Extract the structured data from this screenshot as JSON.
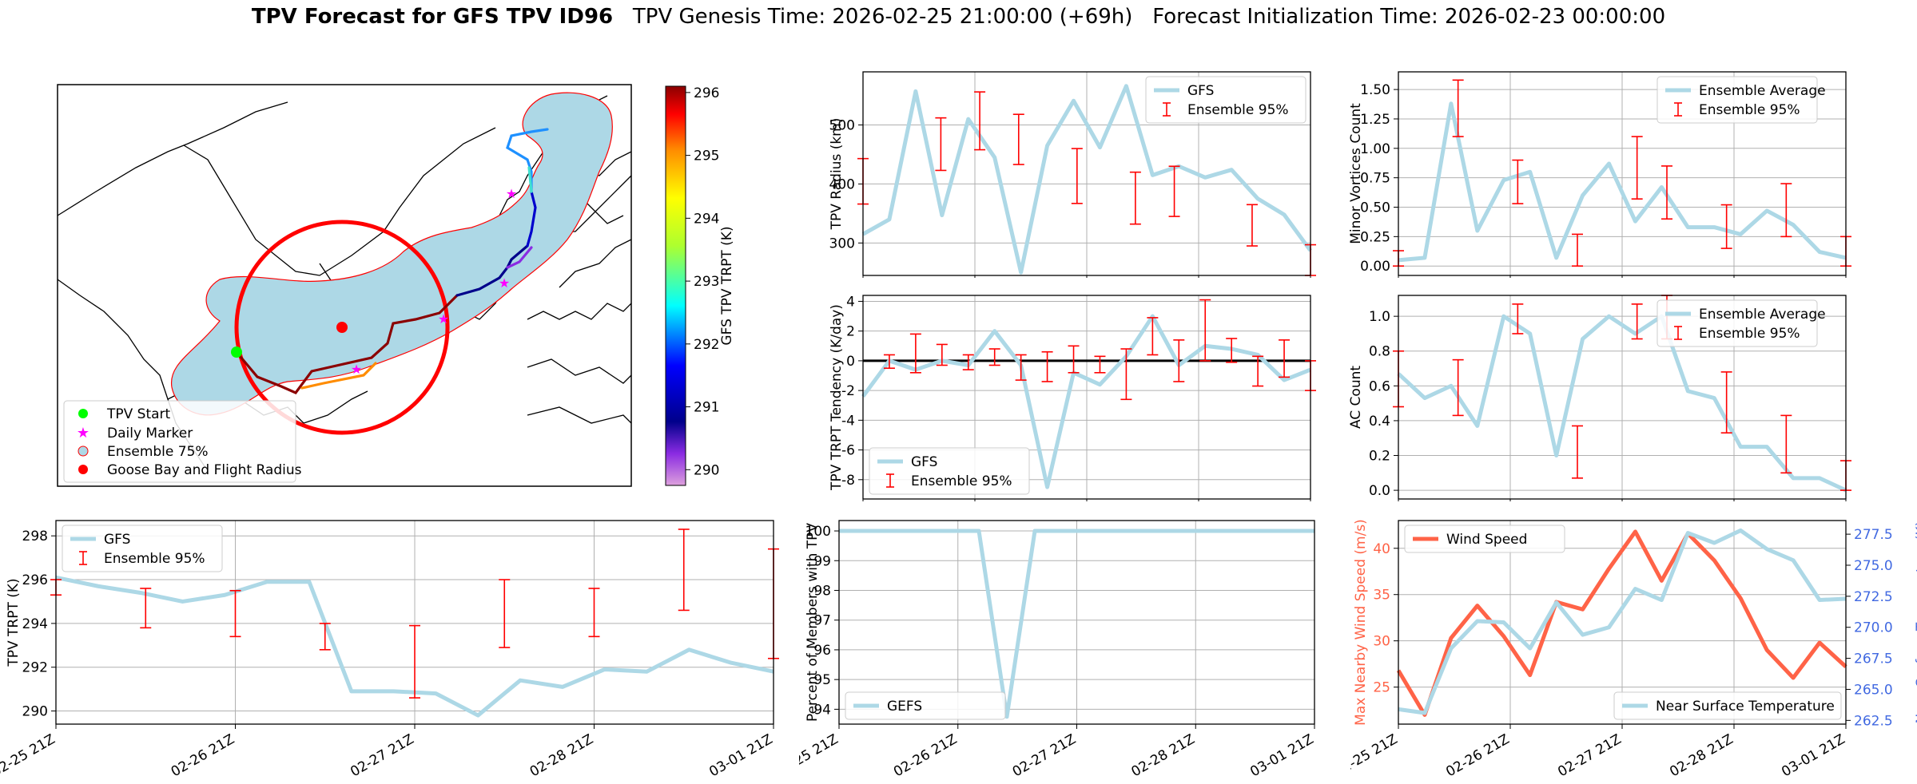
{
  "title": {
    "bold": "TPV Forecast for GFS TPV ID96",
    "genesis": "TPV Genesis Time: 2026-02-25 21:00:00 (+69h)",
    "init": "Forecast Initialization Time: 2026-02-23 00:00:00"
  },
  "colors": {
    "gfs": "#add8e6",
    "ens": "#ff0000",
    "wind": "#ff6347",
    "temp": "#4169e1",
    "ensemble_fill": "#add8e6",
    "ensemble_edge": "#ff0000",
    "flight_circle": "#ff0000"
  },
  "map": {
    "colorbar_label": "GFS TPV TRPT (K)",
    "colorbar_ticks": [
      "290",
      "291",
      "292",
      "293",
      "294",
      "295",
      "296"
    ],
    "legend": [
      "TPV Start",
      "Daily Marker",
      "Ensemble 75%",
      "Goose Bay and Flight Radius"
    ]
  },
  "chart_data": [
    {
      "id": "radius",
      "type": "line",
      "ylabel": "TPV Radius (km)",
      "ylim": [
        245,
        590
      ],
      "yticks": [
        300,
        400,
        500
      ],
      "xlim": [
        0,
        24
      ],
      "legend_pos": "top-right",
      "legend": [
        "GFS",
        "Ensemble 95%"
      ],
      "show_xlabels": false,
      "series": [
        {
          "name": "GFS",
          "values": [
            315,
            340,
            557,
            347,
            510,
            445,
            250,
            465,
            541,
            462,
            566,
            415,
            430,
            411,
            424,
            375,
            348,
            287
          ]
        }
      ],
      "errorbars": [
        {
          "x": 0,
          "lo": 366,
          "hi": 443
        },
        {
          "x": 4,
          "lo": 423,
          "hi": 512
        },
        {
          "x": 6,
          "lo": 458,
          "hi": 556
        },
        {
          "x": 8,
          "lo": 433,
          "hi": 518
        },
        {
          "x": 11,
          "lo": 367,
          "hi": 460
        },
        {
          "x": 14,
          "lo": 332,
          "hi": 420
        },
        {
          "x": 16,
          "lo": 345,
          "hi": 430
        },
        {
          "x": 20,
          "lo": 295,
          "hi": 365
        },
        {
          "x": 23,
          "lo": 240,
          "hi": 297
        }
      ]
    },
    {
      "id": "minor",
      "type": "line",
      "ylabel": "Minor Vortices Count",
      "ylim": [
        -0.08,
        1.65
      ],
      "yticks": [
        0.0,
        0.25,
        0.5,
        0.75,
        1.0,
        1.25,
        1.5
      ],
      "xlim": [
        0,
        24
      ],
      "legend_pos": "top-right",
      "legend": [
        "Ensemble Average",
        "Ensemble 95%"
      ],
      "show_xlabels": false,
      "series": [
        {
          "name": "Ensemble Average",
          "values": [
            0.05,
            0.07,
            1.38,
            0.3,
            0.73,
            0.8,
            0.07,
            0.6,
            0.87,
            0.38,
            0.67,
            0.33,
            0.33,
            0.27,
            0.47,
            0.35,
            0.12,
            0.07
          ]
        }
      ],
      "errorbars": [
        {
          "x": 0,
          "lo": 0.0,
          "hi": 0.13
        },
        {
          "x": 4,
          "lo": 1.1,
          "hi": 1.58
        },
        {
          "x": 8,
          "lo": 0.53,
          "hi": 0.9
        },
        {
          "x": 12,
          "lo": 0.0,
          "hi": 0.27
        },
        {
          "x": 16,
          "lo": 0.57,
          "hi": 1.1
        },
        {
          "x": 18,
          "lo": 0.4,
          "hi": 0.85
        },
        {
          "x": 22,
          "lo": 0.15,
          "hi": 0.52
        },
        {
          "x": 26,
          "lo": 0.25,
          "hi": 0.7
        },
        {
          "x": 30,
          "lo": 0.0,
          "hi": 0.25
        }
      ]
    },
    {
      "id": "tendency",
      "type": "line",
      "ylabel": "TPV TRPT Tendency (K/day)",
      "ylim": [
        -9.3,
        4.4
      ],
      "yticks": [
        -8,
        -6,
        -4,
        -2,
        0,
        2,
        4
      ],
      "xlim": [
        0,
        24
      ],
      "legend_pos": "bottom-left",
      "legend": [
        "GFS",
        "Ensemble 95%"
      ],
      "show_xlabels": false,
      "zero_line": true,
      "series": [
        {
          "name": "GFS",
          "values": [
            -2.4,
            0.0,
            -0.6,
            0.0,
            -0.3,
            2.0,
            -0.3,
            -8.5,
            -0.8,
            -1.6,
            0.3,
            3.0,
            -0.3,
            1.0,
            0.8,
            0.4,
            -1.3,
            -0.6
          ]
        }
      ],
      "errorbars": [
        {
          "x": 1,
          "lo": -0.5,
          "hi": 0.4
        },
        {
          "x": 2,
          "lo": -0.8,
          "hi": 1.8
        },
        {
          "x": 3,
          "lo": -0.3,
          "hi": 1.1
        },
        {
          "x": 4,
          "lo": -0.6,
          "hi": 0.4
        },
        {
          "x": 5,
          "lo": -0.3,
          "hi": 0.8
        },
        {
          "x": 6,
          "lo": -1.3,
          "hi": 0.4
        },
        {
          "x": 7,
          "lo": -1.4,
          "hi": 0.6
        },
        {
          "x": 8,
          "lo": -0.8,
          "hi": 1.0
        },
        {
          "x": 9,
          "lo": -0.8,
          "hi": 0.3
        },
        {
          "x": 10,
          "lo": -2.6,
          "hi": 0.8
        },
        {
          "x": 11,
          "lo": 0.4,
          "hi": 2.9
        },
        {
          "x": 12,
          "lo": -1.4,
          "hi": 1.4
        },
        {
          "x": 13,
          "lo": 0.0,
          "hi": 4.1
        },
        {
          "x": 14,
          "lo": -0.1,
          "hi": 1.5
        },
        {
          "x": 15,
          "lo": -1.7,
          "hi": 0.3
        },
        {
          "x": 16,
          "lo": -1.1,
          "hi": 1.4
        },
        {
          "x": 17,
          "lo": -2.0,
          "hi": 0.0
        }
      ]
    },
    {
      "id": "ac",
      "type": "line",
      "ylabel": "AC Count",
      "ylim": [
        -0.05,
        1.12
      ],
      "yticks": [
        0.0,
        0.2,
        0.4,
        0.6,
        0.8,
        1.0
      ],
      "xlim": [
        0,
        24
      ],
      "legend_pos": "top-right",
      "legend": [
        "Ensemble Average",
        "Ensemble 95%"
      ],
      "show_xlabels": false,
      "series": [
        {
          "name": "Ensemble Average",
          "values": [
            0.67,
            0.53,
            0.6,
            0.37,
            1.0,
            0.9,
            0.2,
            0.87,
            1.0,
            0.9,
            1.0,
            0.57,
            0.53,
            0.25,
            0.25,
            0.07,
            0.07,
            0.0
          ]
        }
      ],
      "errorbars": [
        {
          "x": 0,
          "lo": 0.48,
          "hi": 0.8
        },
        {
          "x": 4,
          "lo": 0.43,
          "hi": 0.75
        },
        {
          "x": 8,
          "lo": 0.9,
          "hi": 1.07
        },
        {
          "x": 12,
          "lo": 0.07,
          "hi": 0.37
        },
        {
          "x": 16,
          "lo": 0.87,
          "hi": 1.07
        },
        {
          "x": 18,
          "lo": 0.87,
          "hi": 1.12
        },
        {
          "x": 22,
          "lo": 0.33,
          "hi": 0.68
        },
        {
          "x": 26,
          "lo": 0.1,
          "hi": 0.43
        },
        {
          "x": 30,
          "lo": 0.0,
          "hi": 0.17
        }
      ]
    },
    {
      "id": "trpt",
      "type": "line",
      "ylabel": "TPV TRPT (K)",
      "ylim": [
        289.4,
        298.7
      ],
      "yticks": [
        290,
        292,
        294,
        296,
        298
      ],
      "xlim": [
        0,
        24
      ],
      "legend_pos": "top-left",
      "legend": [
        "GFS",
        "Ensemble 95%"
      ],
      "show_xlabels": true,
      "xticks": [
        {
          "x": 0,
          "label": "02-25 21Z"
        },
        {
          "x": 6,
          "label": "02-26 21Z"
        },
        {
          "x": 12,
          "label": "02-27 21Z"
        },
        {
          "x": 18,
          "label": "02-28 21Z"
        },
        {
          "x": 24,
          "label": "03-01 21Z"
        }
      ],
      "series": [
        {
          "name": "GFS",
          "values": [
            296.1,
            295.7,
            295.4,
            295.0,
            295.3,
            295.9,
            295.9,
            290.9,
            290.9,
            290.8,
            289.8,
            291.4,
            291.1,
            291.9,
            291.8,
            292.8,
            292.2,
            291.8
          ]
        }
      ],
      "errorbars": [
        {
          "x": 0,
          "lo": 295.3,
          "hi": 296.0
        },
        {
          "x": 3,
          "lo": 293.8,
          "hi": 295.6
        },
        {
          "x": 6,
          "lo": 293.4,
          "hi": 295.5
        },
        {
          "x": 9,
          "lo": 292.8,
          "hi": 294.0
        },
        {
          "x": 12,
          "lo": 290.6,
          "hi": 293.9
        },
        {
          "x": 15,
          "lo": 292.9,
          "hi": 296.0
        },
        {
          "x": 18,
          "lo": 293.4,
          "hi": 295.6
        },
        {
          "x": 21,
          "lo": 294.6,
          "hi": 298.3
        },
        {
          "x": 24,
          "lo": 292.4,
          "hi": 297.4
        }
      ]
    },
    {
      "id": "percent",
      "type": "line",
      "ylabel": "Percent of Members with TPV",
      "ylim": [
        93.5,
        100.35
      ],
      "yticks": [
        94,
        95,
        96,
        97,
        98,
        99,
        100
      ],
      "xlim": [
        0,
        24
      ],
      "legend_pos": "bottom-left",
      "legend": [
        "GEFS"
      ],
      "show_xlabels": true,
      "xticks": [
        {
          "x": 0,
          "label": "02-25 21Z"
        },
        {
          "x": 6,
          "label": "02-26 21Z"
        },
        {
          "x": 12,
          "label": "02-27 21Z"
        },
        {
          "x": 18,
          "label": "02-28 21Z"
        },
        {
          "x": 24,
          "label": "03-01 21Z"
        }
      ],
      "series": [
        {
          "name": "GEFS",
          "values": [
            100,
            100,
            100,
            100,
            100,
            100,
            93.75,
            100,
            100,
            100,
            100,
            100,
            100,
            100,
            100,
            100,
            100,
            100
          ]
        }
      ],
      "errorbars": []
    },
    {
      "id": "wind",
      "type": "line",
      "ylabel": "Max Nearby Wind Speed (m/s)",
      "y2label": "Near Surface Temperature (K)",
      "ylim": [
        21,
        43
      ],
      "y2lim": [
        262.2,
        278.6
      ],
      "yticks": [
        25,
        30,
        35,
        40
      ],
      "y2ticks": [
        262.5,
        265.0,
        267.5,
        270.0,
        272.5,
        275.0,
        277.5
      ],
      "xlim": [
        0,
        24
      ],
      "legend": [
        "Wind Speed",
        "Near Surface Temperature"
      ],
      "show_xlabels": true,
      "xticks": [
        {
          "x": 0,
          "label": "02-25 21Z"
        },
        {
          "x": 6,
          "label": "02-26 21Z"
        },
        {
          "x": 12,
          "label": "02-27 21Z"
        },
        {
          "x": 18,
          "label": "02-28 21Z"
        },
        {
          "x": 24,
          "label": "03-01 21Z"
        }
      ],
      "series": [
        {
          "name": "Wind Speed",
          "axis": "left",
          "values": [
            26.8,
            22.0,
            30.3,
            33.8,
            30.5,
            26.3,
            34.2,
            33.4,
            37.8,
            41.8,
            36.5,
            41.6,
            38.7,
            34.6,
            29.0,
            26.0,
            29.8,
            27.2
          ]
        },
        {
          "name": "Near Surface Temperature",
          "axis": "right",
          "values": [
            263.4,
            263.1,
            268.3,
            270.5,
            270.4,
            268.3,
            272.0,
            269.4,
            270.0,
            273.1,
            272.2,
            277.6,
            276.8,
            277.8,
            276.3,
            275.4,
            272.2,
            272.3
          ]
        }
      ]
    }
  ]
}
